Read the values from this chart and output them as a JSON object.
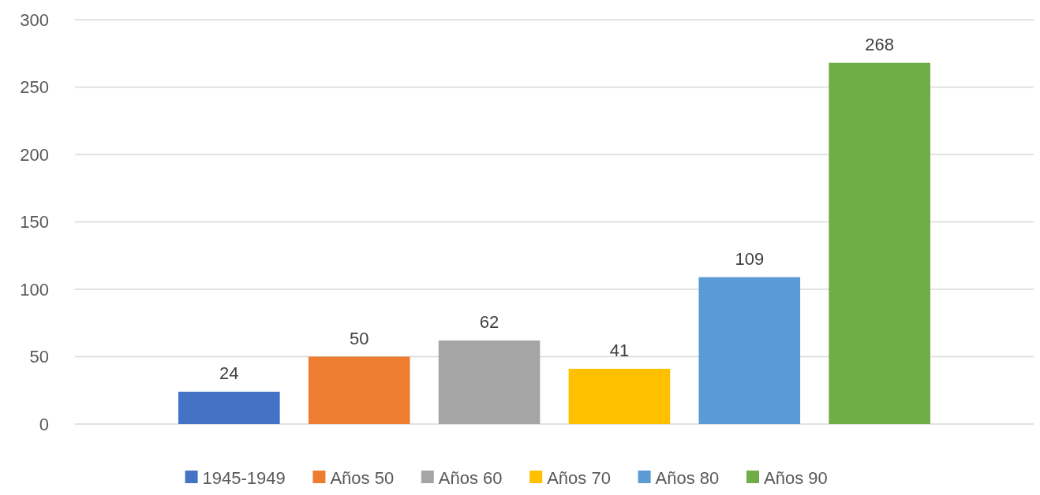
{
  "chart_data": {
    "type": "bar",
    "categories": [
      null
    ],
    "series": [
      {
        "name": "1945-1949",
        "color": "#4472c4",
        "values": [
          24
        ]
      },
      {
        "name": "Años 50",
        "color": "#ed7d31",
        "values": [
          50
        ]
      },
      {
        "name": "Años 60",
        "color": "#a5a5a5",
        "values": [
          62
        ]
      },
      {
        "name": "Años 70",
        "color": "#ffc000",
        "values": [
          41
        ]
      },
      {
        "name": "Años 80",
        "color": "#5b9bd5",
        "values": [
          109
        ]
      },
      {
        "name": "Años 90",
        "color": "#70ad47",
        "values": [
          268
        ]
      }
    ],
    "ylim": [
      0,
      300
    ],
    "yticks": [
      0,
      50,
      100,
      150,
      200,
      250,
      300
    ],
    "grid": "y",
    "legend": "bottom",
    "data_labels": true
  }
}
